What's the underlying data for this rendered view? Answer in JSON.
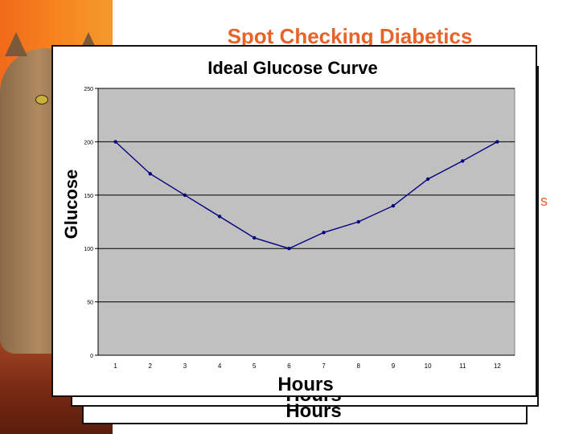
{
  "slide": {
    "title": "Spot Checking Diabetics",
    "stray_text": "s",
    "ghost_label": "Hours"
  },
  "colors": {
    "title": "#e8632a",
    "plot_background": "#c0c0c0",
    "series": "#000080",
    "grid": "#000000"
  },
  "chart_data": {
    "type": "line",
    "title": "Ideal Glucose Curve",
    "xlabel": "Hours",
    "ylabel": "Glucose",
    "ylim": [
      0,
      250
    ],
    "yticks": [
      0,
      50,
      100,
      150,
      200,
      250
    ],
    "categories": [
      "1",
      "2",
      "3",
      "4",
      "5",
      "6",
      "7",
      "8",
      "9",
      "10",
      "11",
      "12"
    ],
    "series": [
      {
        "values": [
          200,
          170,
          150,
          130,
          110,
          100,
          115,
          125,
          140,
          165,
          182,
          200
        ]
      }
    ],
    "grid": true,
    "legend": "none",
    "markers": true
  }
}
